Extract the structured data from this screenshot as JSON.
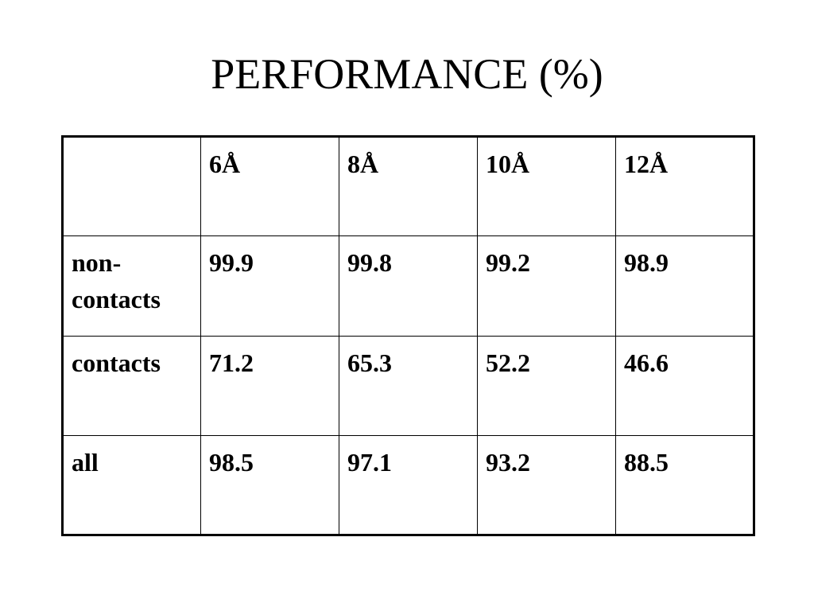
{
  "title": "PERFORMANCE (%)",
  "table": {
    "columns": [
      "6Å",
      "8Å",
      "10Å",
      "12Å"
    ],
    "rows": [
      {
        "label": "non-contacts",
        "values": [
          99.9,
          99.8,
          99.2,
          98.9
        ]
      },
      {
        "label": "contacts",
        "values": [
          71.2,
          65.3,
          52.2,
          46.6
        ]
      },
      {
        "label": "all",
        "values": [
          98.5,
          97.1,
          93.2,
          88.5
        ]
      }
    ]
  }
}
